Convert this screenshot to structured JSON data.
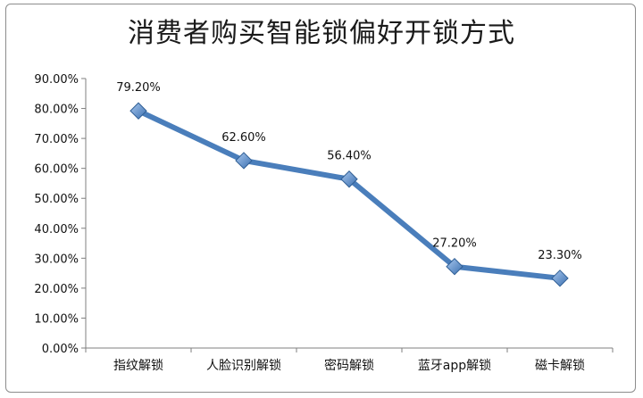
{
  "chart_data": {
    "type": "line",
    "title": "消费者购买智能锁偏好开锁方式",
    "categories": [
      "指纹解锁",
      "人脸识别解锁",
      "密码解锁",
      "蓝牙app解锁",
      "磁卡解锁"
    ],
    "values": [
      79.2,
      62.6,
      56.4,
      27.2,
      23.3
    ],
    "data_labels": [
      "79.20%",
      "62.60%",
      "56.40%",
      "27.20%",
      "23.30%"
    ],
    "y_ticks": [
      "0.00%",
      "10.00%",
      "20.00%",
      "30.00%",
      "40.00%",
      "50.00%",
      "60.00%",
      "70.00%",
      "80.00%",
      "90.00%"
    ],
    "ylim": [
      0,
      90
    ],
    "grid": false,
    "legend": "none",
    "colors": {
      "line": "#4a7ebb",
      "marker": "#5b9bd5",
      "marker_edge": "#2f5e94"
    }
  }
}
